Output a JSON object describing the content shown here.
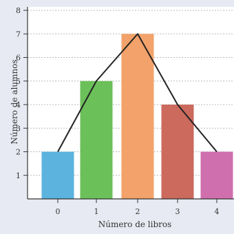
{
  "chart_data": {
    "type": "bar",
    "categories": [
      "0",
      "1",
      "2",
      "3",
      "4"
    ],
    "values": [
      2,
      5,
      7,
      4,
      2
    ],
    "overlay": "frequency-polygon",
    "xlabel": "Número de libros",
    "ylabel": "Número de alumnos",
    "ylim": [
      0,
      8
    ],
    "yticks": [
      "1",
      "2",
      "3",
      "4",
      "5",
      "6",
      "7",
      "8"
    ],
    "grid": "horizontal-dotted",
    "colors": {
      "background": "#e8eaf3",
      "plot_background": "#ffffff",
      "bars": [
        "#5bb3de",
        "#6cc05a",
        "#f2a26a",
        "#cb6a5d",
        "#cf6fae"
      ],
      "polygon": "#222222",
      "grid": "#b9b9b9",
      "axis": "#333333"
    }
  }
}
